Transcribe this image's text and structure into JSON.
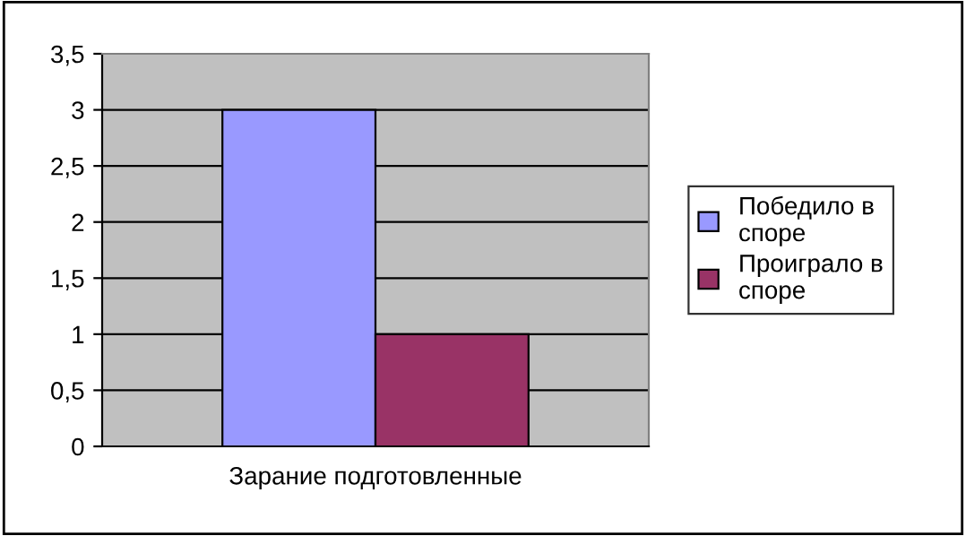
{
  "chart_data": {
    "type": "bar",
    "categories": [
      "Зарание подготовленные"
    ],
    "series": [
      {
        "name": "Победило в\nспоре",
        "color": "#9999ff",
        "values": [
          3
        ]
      },
      {
        "name": "Проиграло в\nспоре",
        "color": "#993366",
        "values": [
          1
        ]
      }
    ],
    "ylim": [
      0,
      3.5
    ],
    "yticks": [
      0,
      {
        "value": 0.5,
        "label": "0,5"
      },
      1,
      {
        "value": 1.5,
        "label": "1,5"
      },
      2,
      {
        "value": 2.5,
        "label": "2,5"
      },
      3,
      {
        "value": 3.5,
        "label": "3,5"
      }
    ],
    "grid": "y",
    "legend": "right"
  }
}
